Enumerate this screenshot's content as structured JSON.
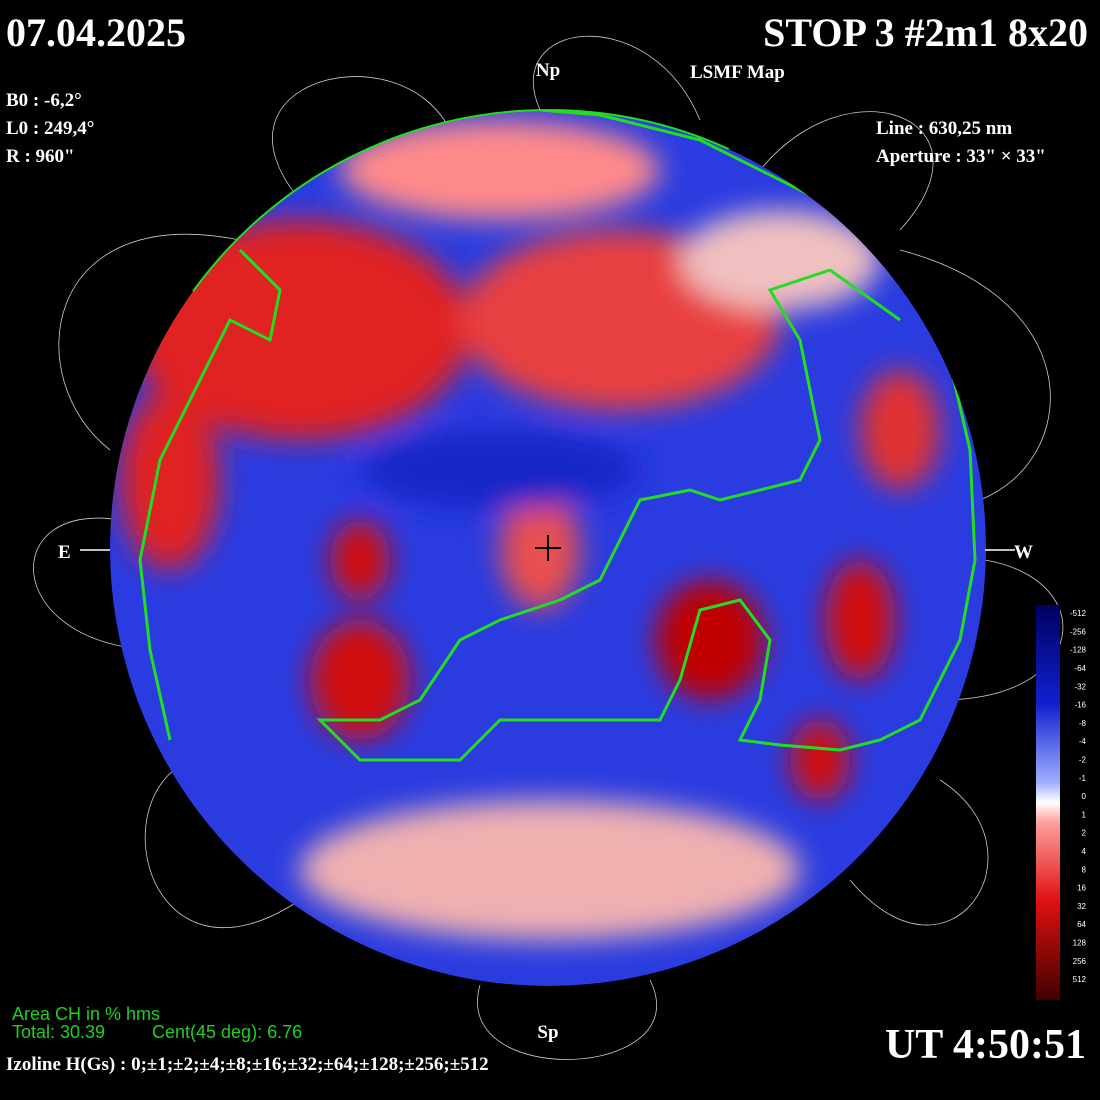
{
  "header": {
    "date": "07.04.2025",
    "title": "STOP 3 #2m1 8x20",
    "subtitle": "LSMF  Map"
  },
  "params_left": [
    "B0 : -6,2°",
    "L0 : 249,4°",
    "R  : 960\""
  ],
  "params_right": [
    "Line :  630,25 nm",
    "Aperture : 33\" × 33\""
  ],
  "directions": {
    "north": "Np",
    "south": "Sp",
    "east": "E",
    "west": "W"
  },
  "colorbar": {
    "ticks": [
      "-512",
      "-256",
      "-128",
      "-64",
      "-32",
      "-16",
      "-8",
      "-4",
      "-2",
      "-1",
      "0",
      "1",
      "2",
      "4",
      "8",
      "16",
      "32",
      "64",
      "128",
      "256",
      "512"
    ]
  },
  "footer": {
    "area_title": "Area CH in % hms",
    "total": "Total: 30.39",
    "central": "Cent(45 deg): 6.76",
    "izoline": "Izoline H(Gs) : 0;±1;±2;±4;±8;±16;±32;±64;±128;±256;±512",
    "time": "UT 4:50:51"
  }
}
